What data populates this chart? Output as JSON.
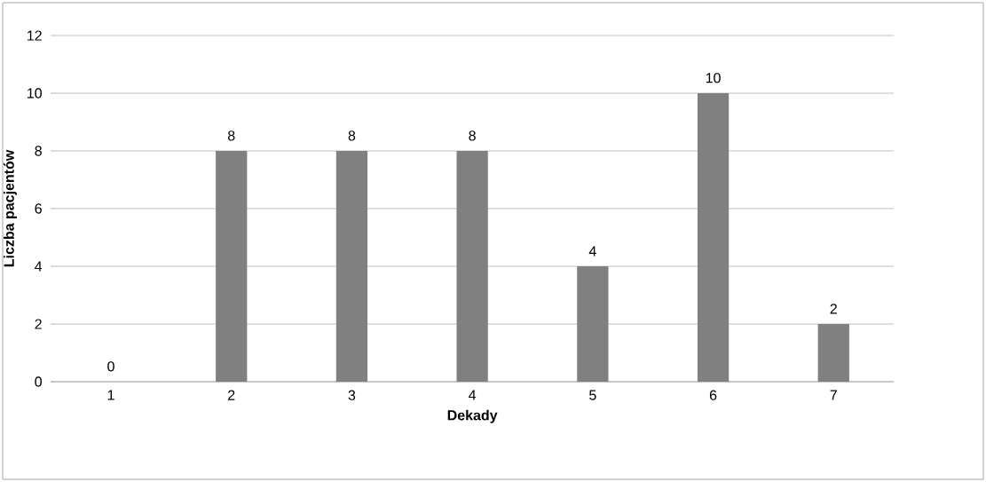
{
  "chart_data": {
    "type": "bar",
    "xlabel": "Dekady",
    "ylabel": "Liczba pacjentów",
    "categories": [
      "1",
      "2",
      "3",
      "4",
      "5",
      "6",
      "7"
    ],
    "values": [
      0,
      8,
      8,
      8,
      4,
      10,
      2
    ],
    "color": "#808080",
    "ylim": [
      0,
      12
    ],
    "yticks": [
      0,
      2,
      4,
      6,
      8,
      10,
      12
    ],
    "grid": "y",
    "data_labels": true
  }
}
